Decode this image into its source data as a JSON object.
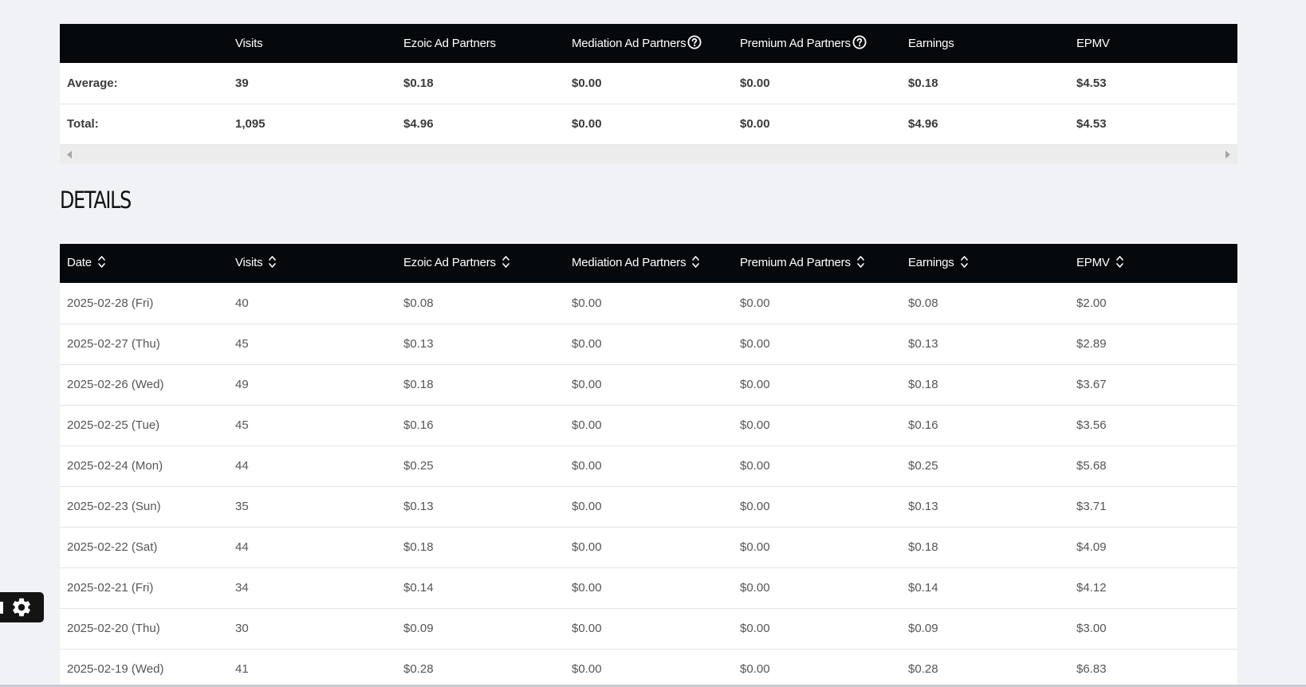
{
  "summary": {
    "headers": [
      "",
      "Visits",
      "Ezoic Ad Partners",
      "Mediation Ad Partners",
      "Premium Ad Partners",
      "Earnings",
      "EPMV"
    ],
    "rows": [
      [
        "Average:",
        "39",
        "$0.18",
        "$0.00",
        "$0.00",
        "$0.18",
        "$4.53"
      ],
      [
        "Total:",
        "1,095",
        "$4.96",
        "$0.00",
        "$0.00",
        "$4.96",
        "$4.53"
      ]
    ]
  },
  "details": {
    "title": "DETAILS",
    "headers": [
      "Date",
      "Visits",
      "Ezoic Ad Partners",
      "Mediation Ad Partners",
      "Premium Ad Partners",
      "Earnings",
      "EPMV"
    ],
    "rows": [
      [
        "2025-02-28 (Fri)",
        "40",
        "$0.08",
        "$0.00",
        "$0.00",
        "$0.08",
        "$2.00"
      ],
      [
        "2025-02-27 (Thu)",
        "45",
        "$0.13",
        "$0.00",
        "$0.00",
        "$0.13",
        "$2.89"
      ],
      [
        "2025-02-26 (Wed)",
        "49",
        "$0.18",
        "$0.00",
        "$0.00",
        "$0.18",
        "$3.67"
      ],
      [
        "2025-02-25 (Tue)",
        "45",
        "$0.16",
        "$0.00",
        "$0.00",
        "$0.16",
        "$3.56"
      ],
      [
        "2025-02-24 (Mon)",
        "44",
        "$0.25",
        "$0.00",
        "$0.00",
        "$0.25",
        "$5.68"
      ],
      [
        "2025-02-23 (Sun)",
        "35",
        "$0.13",
        "$0.00",
        "$0.00",
        "$0.13",
        "$3.71"
      ],
      [
        "2025-02-22 (Sat)",
        "44",
        "$0.18",
        "$0.00",
        "$0.00",
        "$0.18",
        "$4.09"
      ],
      [
        "2025-02-21 (Fri)",
        "34",
        "$0.14",
        "$0.00",
        "$0.00",
        "$0.14",
        "$4.12"
      ],
      [
        "2025-02-20 (Thu)",
        "30",
        "$0.09",
        "$0.00",
        "$0.00",
        "$0.09",
        "$3.00"
      ],
      [
        "2025-02-19 (Wed)",
        "41",
        "$0.28",
        "$0.00",
        "$0.00",
        "$0.28",
        "$6.83"
      ]
    ]
  },
  "icons": {
    "help": "help-circle-icon",
    "sort": "sort-icon",
    "settings": "gear-icon"
  },
  "colors": {
    "header_bg": "#06090c",
    "page_bg": "#f1f2f5"
  }
}
